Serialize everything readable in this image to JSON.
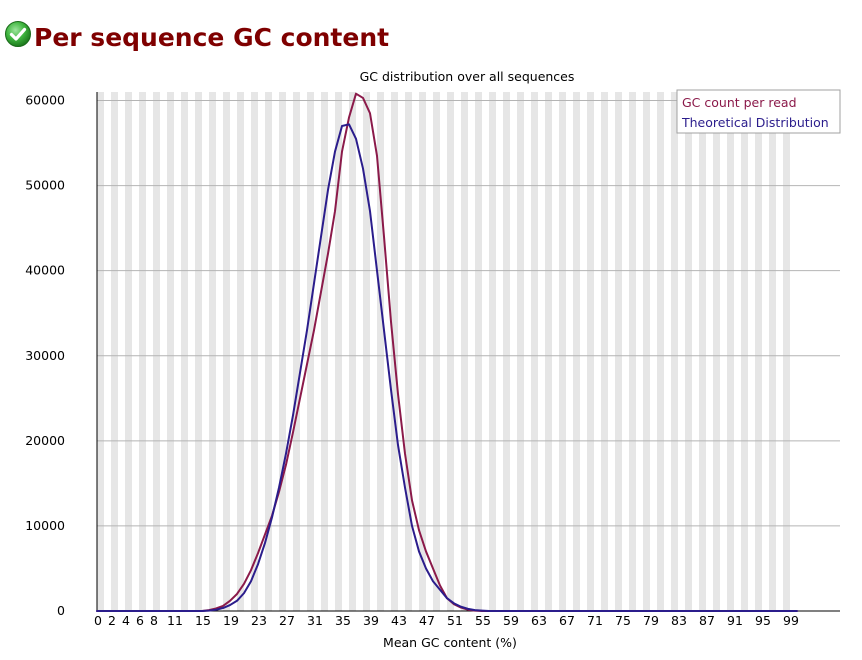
{
  "header": {
    "title": "Per sequence GC content",
    "status_icon": "check-circle-icon",
    "status": "pass",
    "status_color": "#2ea82e"
  },
  "chart_data": {
    "type": "line",
    "title": "GC distribution over all sequences",
    "xlabel": "Mean GC content (%)",
    "ylabel": "",
    "x_tick_labels": [
      "0",
      "2",
      "4",
      "6",
      "8",
      "11",
      "15",
      "19",
      "23",
      "27",
      "31",
      "35",
      "39",
      "43",
      "47",
      "51",
      "55",
      "59",
      "63",
      "67",
      "71",
      "75",
      "79",
      "83",
      "87",
      "91",
      "95",
      "99"
    ],
    "x_tick_positions": [
      0,
      2,
      4,
      6,
      8,
      11,
      15,
      19,
      23,
      27,
      31,
      35,
      39,
      43,
      47,
      51,
      55,
      59,
      63,
      67,
      71,
      75,
      79,
      83,
      87,
      91,
      95,
      99
    ],
    "y_ticks": [
      0,
      10000,
      20000,
      30000,
      40000,
      50000,
      60000
    ],
    "xlim": [
      0,
      100
    ],
    "ylim": [
      0,
      61000
    ],
    "grid": true,
    "legend_position": "top-right",
    "x": [
      0,
      1,
      2,
      3,
      4,
      5,
      6,
      7,
      8,
      9,
      10,
      11,
      12,
      13,
      14,
      15,
      16,
      17,
      18,
      19,
      20,
      21,
      22,
      23,
      24,
      25,
      26,
      27,
      28,
      29,
      30,
      31,
      32,
      33,
      34,
      35,
      36,
      37,
      38,
      39,
      40,
      41,
      42,
      43,
      44,
      45,
      46,
      47,
      48,
      49,
      50,
      51,
      52,
      53,
      54,
      55,
      56,
      57,
      58,
      59,
      60,
      61,
      62,
      63,
      64,
      65,
      66,
      67,
      68,
      69,
      70,
      71,
      72,
      73,
      74,
      75,
      76,
      77,
      78,
      79,
      80,
      81,
      82,
      83,
      84,
      85,
      86,
      87,
      88,
      89,
      90,
      91,
      92,
      93,
      94,
      95,
      96,
      97,
      98,
      99,
      100
    ],
    "series": [
      {
        "name": "GC count per read",
        "color": "#8b1a4a",
        "values": [
          0,
          0,
          0,
          0,
          0,
          0,
          0,
          0,
          0,
          0,
          0,
          0,
          0,
          0,
          0,
          0,
          100,
          300,
          600,
          1200,
          2000,
          3200,
          4800,
          6800,
          9000,
          11200,
          14000,
          17200,
          21000,
          25000,
          29000,
          33000,
          37500,
          42000,
          47000,
          54000,
          58000,
          60800,
          60300,
          58500,
          53500,
          44000,
          34000,
          25500,
          18500,
          13000,
          9500,
          7000,
          5000,
          3000,
          1500,
          800,
          400,
          150,
          50,
          0,
          0,
          0,
          0,
          0,
          0,
          0,
          0,
          0,
          0,
          0,
          0,
          0,
          0,
          0,
          0,
          0,
          0,
          0,
          0,
          0,
          0,
          0,
          0,
          0,
          0,
          0,
          0,
          0,
          0,
          0,
          0,
          0,
          0,
          0,
          0,
          0,
          0,
          0,
          0,
          0,
          0,
          0,
          0,
          0,
          0
        ],
        "render_offset": 42
      },
      {
        "name": "Theoretical Distribution",
        "color": "#2b1d8c",
        "values": [
          0,
          0,
          0,
          0,
          0,
          0,
          0,
          0,
          0,
          0,
          0,
          0,
          0,
          0,
          0,
          0,
          50,
          150,
          350,
          700,
          1200,
          2100,
          3500,
          5500,
          8000,
          11000,
          14500,
          18500,
          23000,
          28000,
          33000,
          38500,
          44000,
          49500,
          54000,
          57000,
          57200,
          55500,
          52000,
          47000,
          40000,
          33000,
          26000,
          19500,
          14500,
          10000,
          7000,
          5000,
          3500,
          2500,
          1500,
          900,
          500,
          250,
          100,
          50,
          0,
          0,
          0,
          0,
          0,
          0,
          0,
          0,
          0,
          0,
          0,
          0,
          0,
          0,
          0,
          0,
          0,
          0,
          0,
          0,
          0,
          0,
          0,
          0,
          0,
          0,
          0,
          0,
          0,
          0,
          0,
          0,
          0,
          0,
          0,
          0,
          0,
          0,
          0,
          0,
          0,
          0,
          0,
          0,
          0
        ],
        "render_offset": 42
      }
    ]
  }
}
